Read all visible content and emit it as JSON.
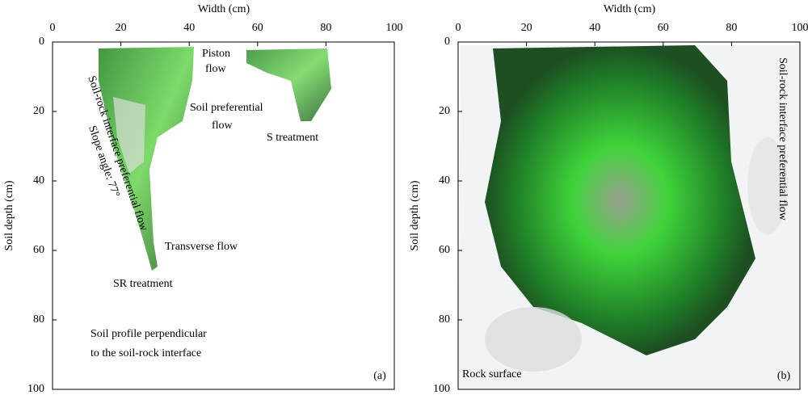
{
  "chart_data": [
    {
      "type": "image",
      "xlabel": "Width (cm)",
      "ylabel": "Soil depth (cm)",
      "xlim": [
        0,
        100
      ],
      "xticks": [
        0,
        20,
        40,
        60,
        80,
        100
      ],
      "ylim": [
        0,
        100
      ],
      "yticks": [
        0,
        20,
        40,
        60,
        80,
        100
      ],
      "annotations": [
        {
          "text": "Piston",
          "color": "#000000"
        },
        {
          "text": "flow",
          "color": "#000000"
        },
        {
          "text": "Soil preferential",
          "color": "#000000"
        },
        {
          "text": "flow",
          "color": "#000000"
        },
        {
          "text": "S treatment",
          "color": "#b5472a"
        },
        {
          "text": "Soil-rock interface preferential flow",
          "color": "#000000"
        },
        {
          "text": "Slope angle: 77°",
          "color": "#000000"
        },
        {
          "text": "Transverse flow",
          "color": "#000000"
        },
        {
          "text": "SR treatment",
          "color": "#8c8c8c"
        },
        {
          "text": "Soil profile perpendicular",
          "color": "#000000"
        },
        {
          "text": "to the soil-rock interface",
          "color": "#000000"
        },
        {
          "text": "(a)",
          "color": "#000000"
        }
      ]
    },
    {
      "type": "image",
      "xlabel": "Width (cm)",
      "ylabel": "Soil depth (cm)",
      "xlim": [
        0,
        100
      ],
      "xticks": [
        0,
        20,
        40,
        60,
        80,
        100
      ],
      "ylim": [
        0,
        100
      ],
      "yticks": [
        0,
        20,
        40,
        60,
        80,
        100
      ],
      "annotations": [
        {
          "text": "Soil-rock interface preferential flow",
          "color": "#000000"
        },
        {
          "text": "Rock surface",
          "color": "#000000"
        },
        {
          "text": "(b)",
          "color": "#000000"
        }
      ]
    }
  ]
}
